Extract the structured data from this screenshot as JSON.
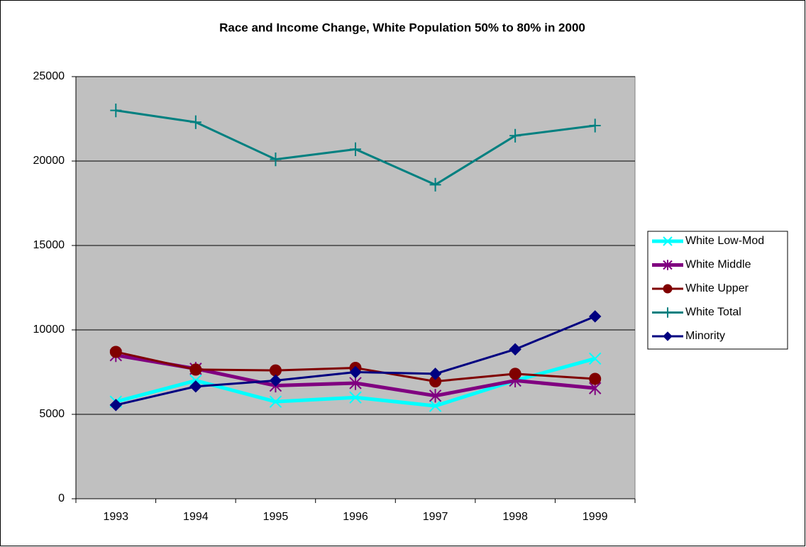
{
  "chart_data": {
    "type": "line",
    "title": "Race and Income Change, White Population 50% to 80% in 2000",
    "categories": [
      "1993",
      "1994",
      "1995",
      "1996",
      "1997",
      "1998",
      "1999"
    ],
    "series": [
      {
        "name": "White Low-Mod",
        "color": "#00ffff",
        "marker": "x",
        "line_width": 5,
        "values": [
          5750,
          7000,
          5750,
          6000,
          5500,
          7000,
          8300
        ]
      },
      {
        "name": "White Middle",
        "color": "#800080",
        "marker": "star",
        "line_width": 5,
        "values": [
          8500,
          7700,
          6700,
          6850,
          6100,
          7000,
          6550
        ]
      },
      {
        "name": "White Upper",
        "color": "#800000",
        "marker": "circle",
        "line_width": 3,
        "values": [
          8700,
          7650,
          7600,
          7750,
          6950,
          7400,
          7100
        ]
      },
      {
        "name": "White Total",
        "color": "#008080",
        "marker": "plus",
        "line_width": 3,
        "values": [
          23000,
          22300,
          20100,
          20700,
          18600,
          21500,
          22100
        ]
      },
      {
        "name": "Minority",
        "color": "#000080",
        "marker": "diamond",
        "line_width": 3,
        "values": [
          5550,
          6650,
          7000,
          7500,
          7400,
          8850,
          10800
        ]
      }
    ],
    "ylim": [
      0,
      25000
    ],
    "yticks": [
      0,
      5000,
      10000,
      15000,
      20000,
      25000
    ],
    "grid": true,
    "legend": "right",
    "plot_background": "#c0c0c0"
  }
}
